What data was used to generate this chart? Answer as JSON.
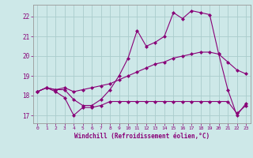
{
  "xlabel": "Windchill (Refroidissement éolien,°C)",
  "background_color": "#cde8e8",
  "grid_color": "#aacccc",
  "line_color": "#880077",
  "xlim": [
    -0.5,
    23.5
  ],
  "ylim": [
    16.6,
    22.6
  ],
  "yticks": [
    17,
    18,
    19,
    20,
    21,
    22
  ],
  "xticks": [
    0,
    1,
    2,
    3,
    4,
    5,
    6,
    7,
    8,
    9,
    10,
    11,
    12,
    13,
    14,
    15,
    16,
    17,
    18,
    19,
    20,
    21,
    22,
    23
  ],
  "line1_x": [
    0,
    1,
    2,
    3,
    4,
    5,
    6,
    7,
    8,
    9,
    10,
    11,
    12,
    13,
    14,
    15,
    16,
    17,
    18,
    19,
    20,
    21,
    22,
    23
  ],
  "line1_y": [
    18.2,
    18.4,
    18.3,
    18.3,
    17.8,
    17.5,
    17.5,
    17.8,
    18.3,
    19.0,
    19.9,
    21.3,
    20.5,
    20.7,
    21.0,
    22.2,
    21.9,
    22.3,
    22.2,
    22.1,
    20.1,
    18.3,
    17.0,
    17.6
  ],
  "line2_x": [
    0,
    1,
    2,
    3,
    4,
    5,
    6,
    7,
    8,
    9,
    10,
    11,
    12,
    13,
    14,
    15,
    16,
    17,
    18,
    19,
    20,
    21,
    22,
    23
  ],
  "line2_y": [
    18.2,
    18.4,
    18.2,
    17.9,
    17.0,
    17.4,
    17.4,
    17.5,
    17.7,
    17.7,
    17.7,
    17.7,
    17.7,
    17.7,
    17.7,
    17.7,
    17.7,
    17.7,
    17.7,
    17.7,
    17.7,
    17.7,
    17.1,
    17.5
  ],
  "line3_x": [
    0,
    1,
    2,
    3,
    4,
    5,
    6,
    7,
    8,
    9,
    10,
    11,
    12,
    13,
    14,
    15,
    16,
    17,
    18,
    19,
    20,
    21,
    22,
    23
  ],
  "line3_y": [
    18.2,
    18.4,
    18.3,
    18.4,
    18.2,
    18.3,
    18.4,
    18.5,
    18.6,
    18.8,
    19.0,
    19.2,
    19.4,
    19.6,
    19.7,
    19.9,
    20.0,
    20.1,
    20.2,
    20.2,
    20.1,
    19.7,
    19.3,
    19.1
  ]
}
